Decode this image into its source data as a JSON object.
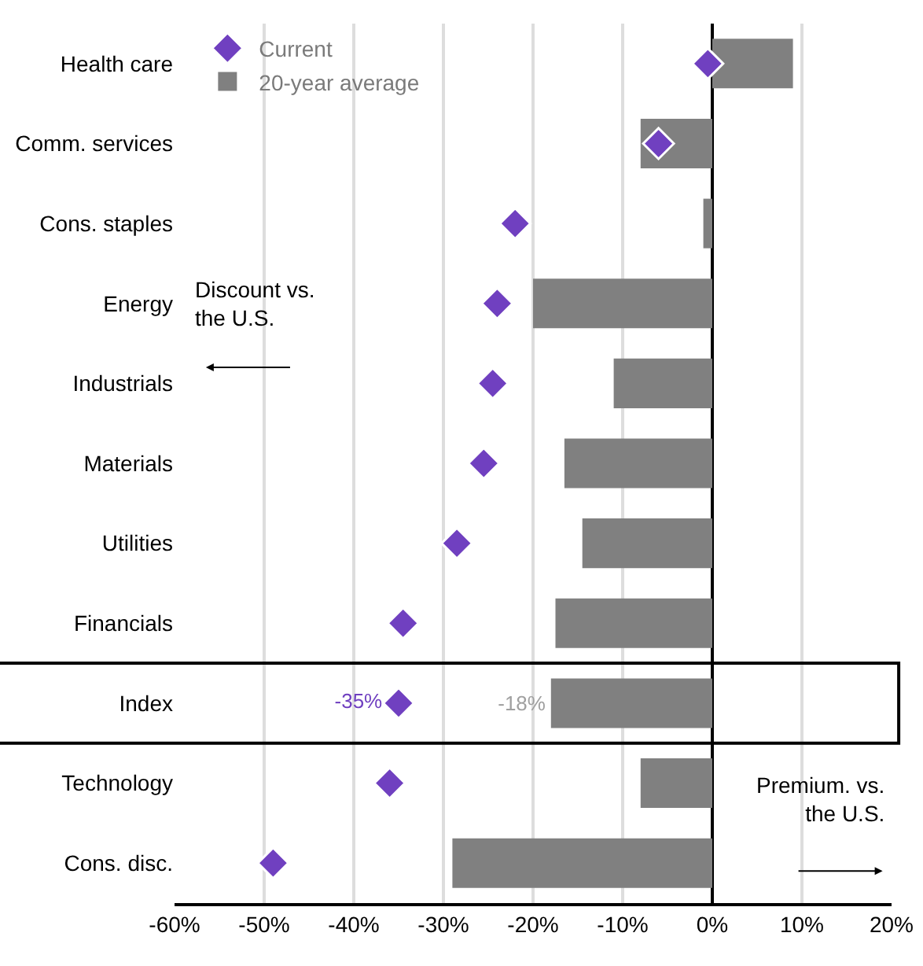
{
  "chart_data": {
    "type": "bar",
    "orientation": "horizontal",
    "categories": [
      "Health care",
      "Comm. services",
      "Cons. staples",
      "Energy",
      "Industrials",
      "Materials",
      "Utilities",
      "Financials",
      "Index",
      "Technology",
      "Cons. disc."
    ],
    "series": [
      {
        "name": "20-year average",
        "color": "#808080",
        "values": [
          9,
          -8,
          -1,
          -20,
          -11,
          -16.5,
          -14.5,
          -17.5,
          -18,
          -8,
          -29
        ],
        "value_labels": [
          null,
          null,
          null,
          null,
          null,
          null,
          null,
          null,
          "-18%",
          null,
          null
        ]
      },
      {
        "name": "Current",
        "type": "scatter",
        "marker": "diamond",
        "color": "#7040c0",
        "values": [
          -0.5,
          -6,
          -22,
          -24,
          -24.5,
          -25.5,
          -28.5,
          -34.5,
          -35,
          -36,
          -49
        ],
        "value_labels": [
          null,
          null,
          null,
          null,
          null,
          null,
          null,
          null,
          "-35%",
          null,
          null
        ]
      }
    ],
    "xlim": [
      -60,
      20
    ],
    "xticks": [
      {
        "value": -60,
        "label": "-60%"
      },
      {
        "value": -50,
        "label": "-50%"
      },
      {
        "value": -40,
        "label": "-40%"
      },
      {
        "value": -30,
        "label": "-30%"
      },
      {
        "value": -20,
        "label": "-20%"
      },
      {
        "value": -10,
        "label": "-10%"
      },
      {
        "value": 0,
        "label": "0%"
      },
      {
        "value": 10,
        "label": "10%"
      },
      {
        "value": 20,
        "label": "20%"
      }
    ],
    "grid": "x",
    "legend": "top left",
    "annotations": [
      "Discount vs.\nthe U.S.",
      "Premium. vs.\nthe U.S."
    ]
  }
}
